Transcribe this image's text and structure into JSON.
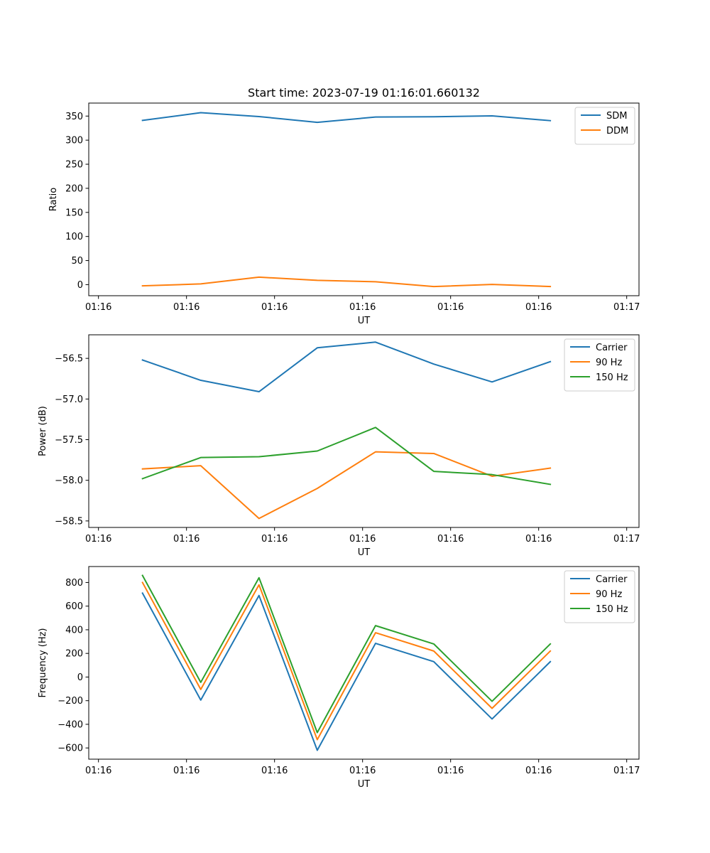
{
  "figure_title": "Start time: 2023-07-19 01:16:01.660132",
  "colors": {
    "blue": "#1f77b4",
    "orange": "#ff7f0e",
    "green": "#2ca02c"
  },
  "chart_data": [
    {
      "type": "line",
      "title": "Start time: 2023-07-19 01:16:01.660132",
      "xlabel": "UT",
      "ylabel": "Ratio",
      "xlim": [
        -0.15,
        8.35
      ],
      "ylim": [
        -23,
        377
      ],
      "x_ticks": [
        0,
        1.36,
        2.72,
        4.08,
        5.44,
        6.8,
        8.16
      ],
      "x_tick_labels": [
        "01:16",
        "01:16",
        "01:16",
        "01:16",
        "01:16",
        "01:16",
        "01:17"
      ],
      "y_ticks": [
        0,
        50,
        100,
        150,
        200,
        250,
        300,
        350
      ],
      "y_tick_labels": [
        "0",
        "50",
        "100",
        "150",
        "200",
        "250",
        "300",
        "350"
      ],
      "x": [
        0.68,
        1.58,
        2.48,
        3.38,
        4.28,
        5.18,
        6.08,
        6.98
      ],
      "legend": "upper right",
      "series": [
        {
          "name": "SDM",
          "color": "#1f77b4",
          "values": [
            341,
            357,
            349,
            337,
            348,
            348.5,
            350.5,
            340.5
          ]
        },
        {
          "name": "DDM",
          "color": "#ff7f0e",
          "values": [
            -2.5,
            1.5,
            15.5,
            9,
            6,
            -4,
            0.5,
            -4
          ]
        }
      ]
    },
    {
      "type": "line",
      "title": "",
      "xlabel": "UT",
      "ylabel": "Power (dB)",
      "xlim": [
        -0.15,
        8.35
      ],
      "ylim": [
        -58.58,
        -56.21
      ],
      "x_ticks": [
        0,
        1.36,
        2.72,
        4.08,
        5.44,
        6.8,
        8.16
      ],
      "x_tick_labels": [
        "01:16",
        "01:16",
        "01:16",
        "01:16",
        "01:16",
        "01:16",
        "01:17"
      ],
      "y_ticks": [
        -58.5,
        -58.0,
        -57.5,
        -57.0,
        -56.5
      ],
      "y_tick_labels": [
        "−58.5",
        "−58.0",
        "−57.5",
        "−57.0",
        "−56.5"
      ],
      "x": [
        0.68,
        1.58,
        2.48,
        3.38,
        4.28,
        5.18,
        6.08,
        6.98
      ],
      "legend": "upper right",
      "series": [
        {
          "name": "Carrier",
          "color": "#1f77b4",
          "values": [
            -56.52,
            -56.77,
            -56.91,
            -56.37,
            -56.3,
            -56.57,
            -56.79,
            -56.54
          ]
        },
        {
          "name": "90 Hz",
          "color": "#ff7f0e",
          "values": [
            -57.86,
            -57.82,
            -58.47,
            -58.1,
            -57.65,
            -57.67,
            -57.95,
            -57.85
          ]
        },
        {
          "name": "150 Hz",
          "color": "#2ca02c",
          "values": [
            -57.98,
            -57.72,
            -57.71,
            -57.64,
            -57.35,
            -57.89,
            -57.93,
            -58.05
          ]
        }
      ]
    },
    {
      "type": "line",
      "title": "",
      "xlabel": "UT",
      "ylabel": "Frequency (Hz)",
      "xlim": [
        -0.15,
        8.35
      ],
      "ylim": [
        -695,
        935
      ],
      "x_ticks": [
        0,
        1.36,
        2.72,
        4.08,
        5.44,
        6.8,
        8.16
      ],
      "x_tick_labels": [
        "01:16",
        "01:16",
        "01:16",
        "01:16",
        "01:16",
        "01:16",
        "01:17"
      ],
      "y_ticks": [
        -600,
        -400,
        -200,
        0,
        200,
        400,
        600,
        800
      ],
      "y_tick_labels": [
        "−600",
        "−400",
        "−200",
        "0",
        "200",
        "400",
        "600",
        "800"
      ],
      "x": [
        0.68,
        1.58,
        2.48,
        3.38,
        4.28,
        5.18,
        6.08,
        6.98
      ],
      "legend": "upper right",
      "series": [
        {
          "name": "Carrier",
          "color": "#1f77b4",
          "values": [
            710,
            -195,
            690,
            -620,
            285,
            130,
            -355,
            130
          ]
        },
        {
          "name": "90 Hz",
          "color": "#ff7f0e",
          "values": [
            800,
            -105,
            780,
            -530,
            375,
            220,
            -265,
            220
          ]
        },
        {
          "name": "150 Hz",
          "color": "#2ca02c",
          "values": [
            860,
            -45,
            840,
            -470,
            435,
            280,
            -205,
            280
          ]
        }
      ]
    }
  ]
}
